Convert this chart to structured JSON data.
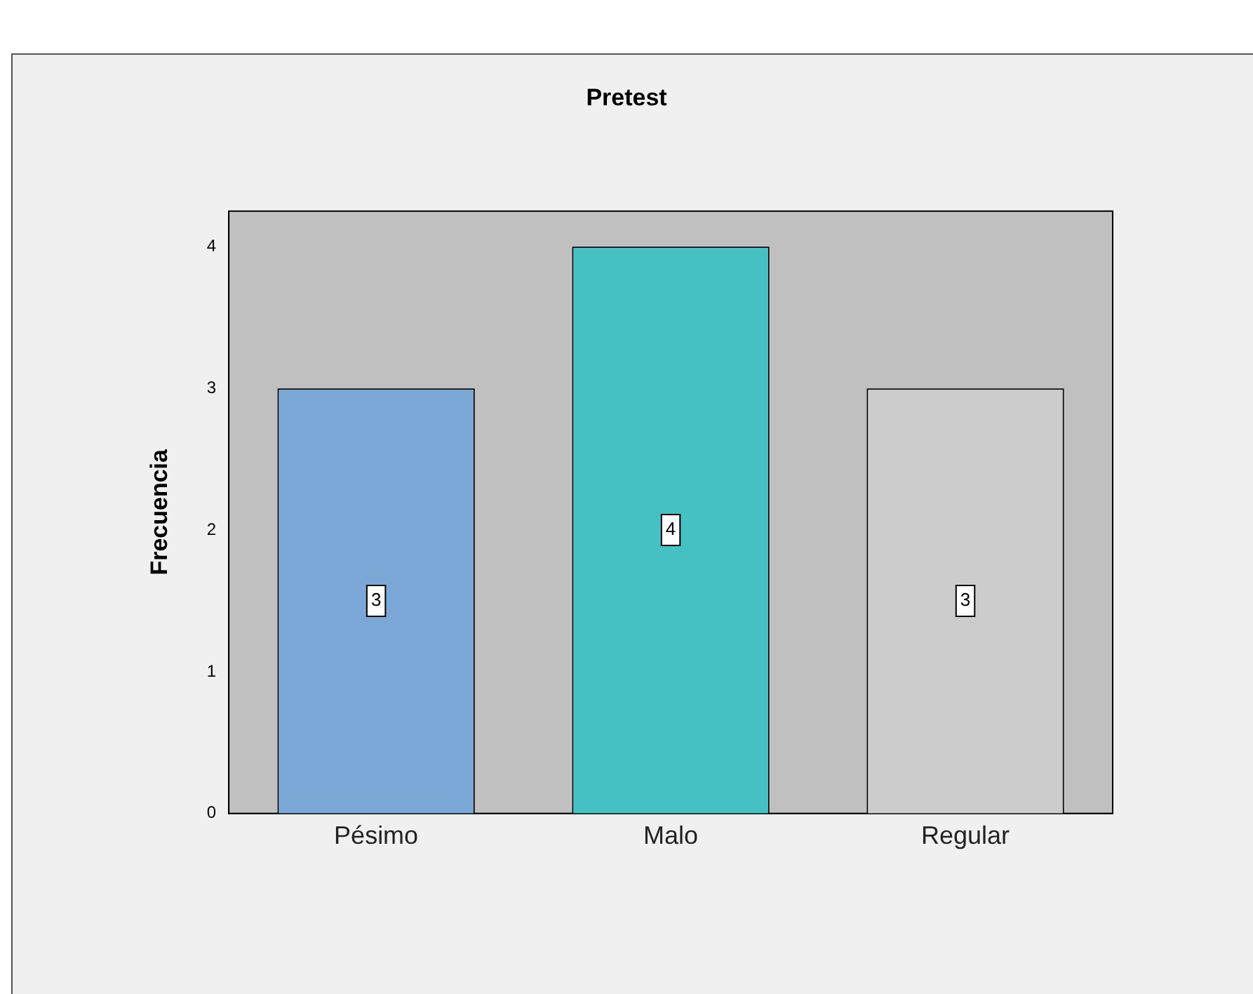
{
  "chart_data": {
    "type": "bar",
    "title": "Pretest",
    "ylabel": "Frecuencia",
    "categories": [
      "Pésimo",
      "Malo",
      "Regular"
    ],
    "values": [
      3,
      4,
      3
    ],
    "colors": [
      "#7ba7d6",
      "#45c1c4",
      "#cccccc"
    ],
    "ylim": [
      0,
      4.25
    ],
    "yticks": [
      0,
      1,
      2,
      3,
      4
    ],
    "grid": false,
    "legend": false,
    "data_labels": true
  }
}
